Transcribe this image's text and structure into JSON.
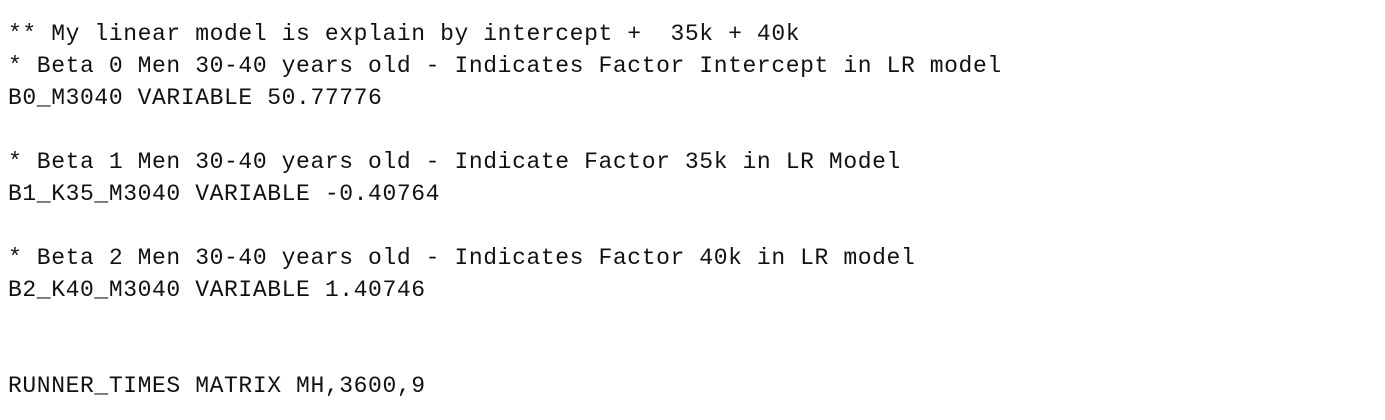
{
  "editor": {
    "lines": [
      "** My linear model is explain by intercept +  35k + 40k",
      "* Beta 0 Men 30-40 years old - Indicates Factor Intercept in LR model",
      "B0_M3040 VARIABLE 50.77776",
      "",
      "* Beta 1 Men 30-40 years old - Indicate Factor 35k in LR Model",
      "B1_K35_M3040 VARIABLE -0.40764",
      "",
      "* Beta 2 Men 30-40 years old - Indicates Factor 40k in LR model",
      "B2_K40_M3040 VARIABLE 1.40746",
      "",
      "",
      "RUNNER_TIMES MATRIX MH,3600,9"
    ]
  }
}
